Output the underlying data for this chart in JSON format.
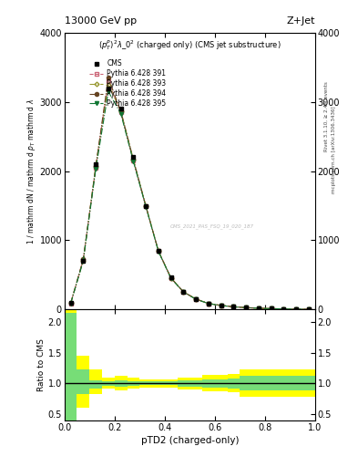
{
  "title_left": "13000 GeV pp",
  "title_right": "Z+Jet",
  "obs_label": "(p_{T}^{P})^{2}\\lambda_0^2 (charged only) (CMS jet substructure)",
  "xlabel": "pTD2 (charged-only)",
  "right_label1": "Rivet 3.1.10, ≥ 2.4M events",
  "right_label2": "mcplots.cern.ch [arXiv:1306.3436]",
  "watermark": "CMS_2021_PAS_FSQ_19_020_187",
  "xlim": [
    0.0,
    1.0
  ],
  "ylim_main": [
    0,
    4000
  ],
  "ylim_ratio": [
    0.4,
    2.2
  ],
  "main_yticks": [
    0,
    1000,
    2000,
    3000,
    4000
  ],
  "ratio_yticks": [
    0.5,
    1.0,
    1.5,
    2.0
  ],
  "cms_x": [
    0.025,
    0.075,
    0.125,
    0.175,
    0.225,
    0.275,
    0.325,
    0.375,
    0.425,
    0.475,
    0.525,
    0.575,
    0.625,
    0.675,
    0.725,
    0.775,
    0.825,
    0.875,
    0.925,
    0.975
  ],
  "cms_y": [
    100,
    700,
    2100,
    3200,
    2900,
    2200,
    1500,
    850,
    460,
    260,
    155,
    90,
    62,
    42,
    30,
    20,
    14,
    10,
    7,
    4
  ],
  "p391_y": [
    90,
    720,
    2050,
    3300,
    2850,
    2150,
    1490,
    845,
    455,
    255,
    150,
    87,
    59,
    40,
    28,
    19,
    13,
    9,
    6,
    3.5
  ],
  "p393_y": [
    95,
    710,
    2080,
    3250,
    2870,
    2170,
    1495,
    847,
    457,
    257,
    152,
    88,
    60,
    41,
    29,
    19.5,
    13.5,
    9.5,
    6.5,
    4
  ],
  "p394_y": [
    92,
    725,
    2060,
    3350,
    2860,
    2160,
    1492,
    846,
    456,
    256,
    151,
    88,
    60,
    41,
    28.5,
    19.2,
    13.2,
    9.2,
    6.2,
    3.8
  ],
  "p395_y": [
    88,
    700,
    2030,
    3150,
    2830,
    2140,
    1485,
    840,
    452,
    252,
    148,
    86,
    58,
    39,
    27.5,
    18.5,
    12.8,
    8.8,
    5.8,
    3.3
  ],
  "bin_edges": [
    0.0,
    0.05,
    0.1,
    0.15,
    0.2,
    0.25,
    0.3,
    0.35,
    0.4,
    0.45,
    0.5,
    0.55,
    0.6,
    0.65,
    0.7,
    0.75,
    0.8,
    0.85,
    0.9,
    0.95,
    1.0
  ],
  "green_lo": [
    0.38,
    0.82,
    0.92,
    0.96,
    0.95,
    0.96,
    0.97,
    0.97,
    0.97,
    0.95,
    0.95,
    0.93,
    0.93,
    0.92,
    0.88,
    0.88,
    0.88,
    0.88,
    0.88,
    0.88
  ],
  "green_hi": [
    2.15,
    1.22,
    1.05,
    1.03,
    1.05,
    1.03,
    1.03,
    1.03,
    1.03,
    1.05,
    1.05,
    1.07,
    1.07,
    1.08,
    1.12,
    1.12,
    1.12,
    1.12,
    1.12,
    1.12
  ],
  "yellow_lo": [
    0.38,
    0.6,
    0.82,
    0.91,
    0.89,
    0.92,
    0.93,
    0.93,
    0.93,
    0.9,
    0.9,
    0.87,
    0.87,
    0.86,
    0.78,
    0.78,
    0.78,
    0.78,
    0.78,
    0.78
  ],
  "yellow_hi": [
    2.2,
    1.45,
    1.22,
    1.1,
    1.13,
    1.09,
    1.07,
    1.07,
    1.07,
    1.1,
    1.1,
    1.14,
    1.14,
    1.15,
    1.22,
    1.22,
    1.22,
    1.22,
    1.22,
    1.22
  ],
  "cms_color": "#000000",
  "p391_color": "#cc6677",
  "p393_color": "#999933",
  "p394_color": "#664422",
  "p395_color": "#117733",
  "bg_color": "#ffffff"
}
